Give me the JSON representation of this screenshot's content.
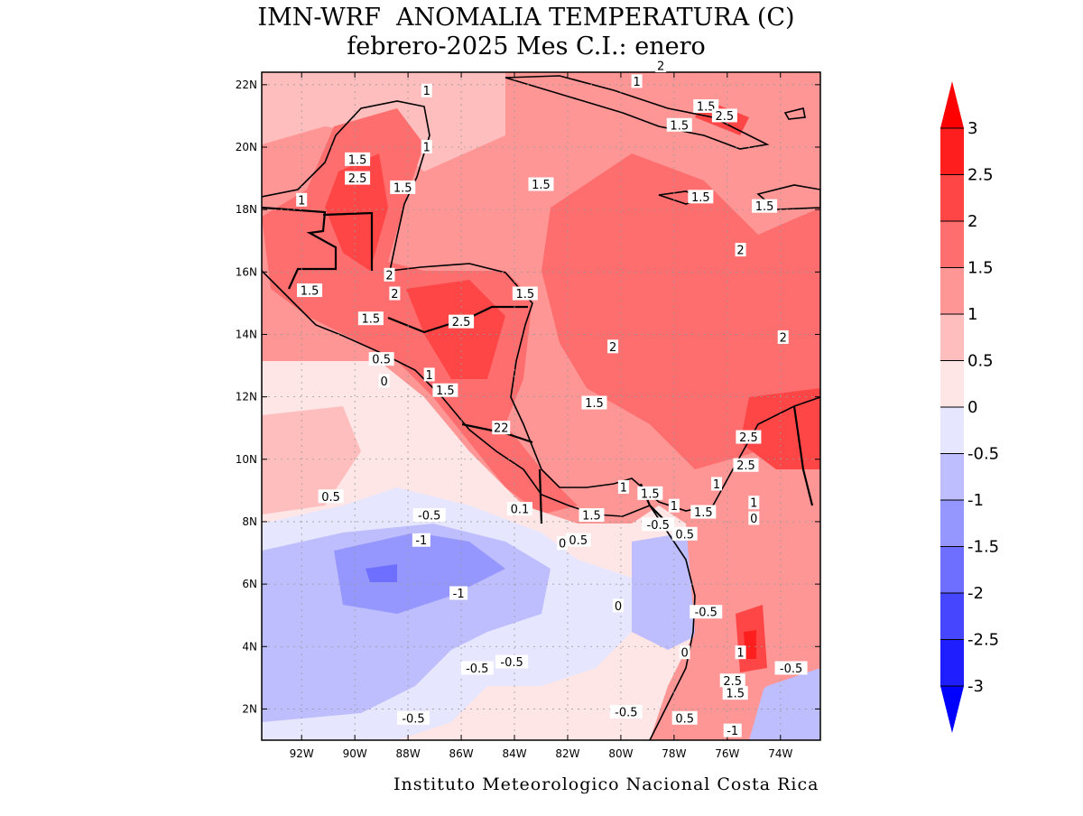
{
  "title": {
    "line1": "IMN-WRF  ANOMALIA TEMPERATURA (C)",
    "line2": "febrero-2025 Mes C.I.: enero"
  },
  "footer": "Instituto Meteorologico Nacional Costa Rica",
  "map": {
    "lon_range": [
      -93.5,
      -72.5
    ],
    "lat_range": [
      1,
      22.4
    ],
    "x_ticks": [
      {
        "value": -92,
        "label": "92W"
      },
      {
        "value": -90,
        "label": "90W"
      },
      {
        "value": -88,
        "label": "88W"
      },
      {
        "value": -86,
        "label": "86W"
      },
      {
        "value": -84,
        "label": "84W"
      },
      {
        "value": -82,
        "label": "82W"
      },
      {
        "value": -80,
        "label": "80W"
      },
      {
        "value": -78,
        "label": "78W"
      },
      {
        "value": -76,
        "label": "76W"
      },
      {
        "value": -74,
        "label": "74W"
      }
    ],
    "y_ticks": [
      {
        "value": 2,
        "label": "2N"
      },
      {
        "value": 4,
        "label": "4N"
      },
      {
        "value": 6,
        "label": "6N"
      },
      {
        "value": 8,
        "label": "8N"
      },
      {
        "value": 10,
        "label": "10N"
      },
      {
        "value": 12,
        "label": "12N"
      },
      {
        "value": 14,
        "label": "14N"
      },
      {
        "value": 16,
        "label": "16N"
      },
      {
        "value": 18,
        "label": "18N"
      },
      {
        "value": 20,
        "label": "20N"
      },
      {
        "value": 22,
        "label": "22N"
      }
    ],
    "grid": true,
    "contour_labels": [
      {
        "lon": -87.3,
        "lat": 21.8,
        "text": "1"
      },
      {
        "lon": -79.4,
        "lat": 22.1,
        "text": "1"
      },
      {
        "lon": -78.5,
        "lat": 22.6,
        "text": "2"
      },
      {
        "lon": -76.8,
        "lat": 21.3,
        "text": "1.5"
      },
      {
        "lon": -76.1,
        "lat": 21.0,
        "text": "2.5"
      },
      {
        "lon": -77.8,
        "lat": 20.7,
        "text": "1.5"
      },
      {
        "lon": -87.3,
        "lat": 20.0,
        "text": "1"
      },
      {
        "lon": -89.9,
        "lat": 19.6,
        "text": "1.5"
      },
      {
        "lon": -89.9,
        "lat": 19.0,
        "text": "2.5"
      },
      {
        "lon": -88.2,
        "lat": 18.7,
        "text": "1.5"
      },
      {
        "lon": -83.0,
        "lat": 18.8,
        "text": "1.5"
      },
      {
        "lon": -77.0,
        "lat": 18.4,
        "text": "1.5"
      },
      {
        "lon": -74.6,
        "lat": 18.1,
        "text": "1.5"
      },
      {
        "lon": -92.0,
        "lat": 18.3,
        "text": "1"
      },
      {
        "lon": -75.5,
        "lat": 16.7,
        "text": "2"
      },
      {
        "lon": -88.7,
        "lat": 15.9,
        "text": "2"
      },
      {
        "lon": -91.7,
        "lat": 15.4,
        "text": "1.5"
      },
      {
        "lon": -88.5,
        "lat": 15.3,
        "text": "2"
      },
      {
        "lon": -83.6,
        "lat": 15.3,
        "text": "1.5"
      },
      {
        "lon": -89.4,
        "lat": 14.5,
        "text": "1.5"
      },
      {
        "lon": -86.0,
        "lat": 14.4,
        "text": "2.5"
      },
      {
        "lon": -73.9,
        "lat": 13.9,
        "text": "2"
      },
      {
        "lon": -80.3,
        "lat": 13.6,
        "text": "2"
      },
      {
        "lon": -89.0,
        "lat": 13.2,
        "text": "0.5"
      },
      {
        "lon": -87.2,
        "lat": 12.7,
        "text": "1"
      },
      {
        "lon": -88.9,
        "lat": 12.5,
        "text": "0"
      },
      {
        "lon": -86.6,
        "lat": 12.2,
        "text": "1.5"
      },
      {
        "lon": -81.0,
        "lat": 11.8,
        "text": "1.5"
      },
      {
        "lon": -84.5,
        "lat": 11.0,
        "text": "22"
      },
      {
        "lon": -75.2,
        "lat": 10.7,
        "text": "2.5"
      },
      {
        "lon": -75.3,
        "lat": 9.8,
        "text": "2.5"
      },
      {
        "lon": -76.4,
        "lat": 9.2,
        "text": "1"
      },
      {
        "lon": -79.9,
        "lat": 9.1,
        "text": "1"
      },
      {
        "lon": -78.9,
        "lat": 8.9,
        "text": "1.5"
      },
      {
        "lon": -78.0,
        "lat": 8.5,
        "text": "1"
      },
      {
        "lon": -90.9,
        "lat": 8.8,
        "text": "0.5"
      },
      {
        "lon": -75.0,
        "lat": 8.6,
        "text": "1"
      },
      {
        "lon": -83.8,
        "lat": 8.4,
        "text": "0.1"
      },
      {
        "lon": -81.1,
        "lat": 8.2,
        "text": "1.5"
      },
      {
        "lon": -76.9,
        "lat": 8.3,
        "text": "1.5"
      },
      {
        "lon": -75.0,
        "lat": 8.1,
        "text": "0"
      },
      {
        "lon": -87.2,
        "lat": 8.2,
        "text": "-0.5"
      },
      {
        "lon": -78.6,
        "lat": 7.9,
        "text": "-0.5"
      },
      {
        "lon": -77.6,
        "lat": 7.6,
        "text": "0.5"
      },
      {
        "lon": -87.5,
        "lat": 7.4,
        "text": "-1"
      },
      {
        "lon": -81.6,
        "lat": 7.4,
        "text": "0.5"
      },
      {
        "lon": -82.2,
        "lat": 7.3,
        "text": "0"
      },
      {
        "lon": -86.1,
        "lat": 5.7,
        "text": "-1"
      },
      {
        "lon": -76.8,
        "lat": 5.1,
        "text": "-0.5"
      },
      {
        "lon": -80.1,
        "lat": 5.3,
        "text": "0"
      },
      {
        "lon": -75.5,
        "lat": 3.8,
        "text": "1"
      },
      {
        "lon": -77.6,
        "lat": 3.8,
        "text": "0"
      },
      {
        "lon": -84.1,
        "lat": 3.5,
        "text": "-0.5"
      },
      {
        "lon": -85.4,
        "lat": 3.3,
        "text": "-0.5"
      },
      {
        "lon": -73.6,
        "lat": 3.3,
        "text": "-0.5"
      },
      {
        "lon": -75.8,
        "lat": 2.9,
        "text": "2.5"
      },
      {
        "lon": -75.7,
        "lat": 2.5,
        "text": "1.5"
      },
      {
        "lon": -79.8,
        "lat": 1.9,
        "text": "-0.5"
      },
      {
        "lon": -87.8,
        "lat": 1.7,
        "text": "-0.5"
      },
      {
        "lon": -77.6,
        "lat": 1.7,
        "text": "0.5"
      },
      {
        "lon": -75.8,
        "lat": 1.3,
        "text": "-1"
      }
    ]
  },
  "colorbar": {
    "levels": [
      "-3",
      "-2.5",
      "-2",
      "-1.5",
      "-1",
      "-0.5",
      "0",
      "0.5",
      "1",
      "1.5",
      "2",
      "2.5",
      "3"
    ],
    "colors": [
      "#1e1eff",
      "#4646ff",
      "#6e6eff",
      "#9696ff",
      "#bebeff",
      "#e6e6ff",
      "#ffe6e6",
      "#ffbebe",
      "#ff9696",
      "#ff6e6e",
      "#ff4646",
      "#ff1e1e"
    ],
    "under_color": "#0000ff",
    "over_color": "#ff0000"
  }
}
